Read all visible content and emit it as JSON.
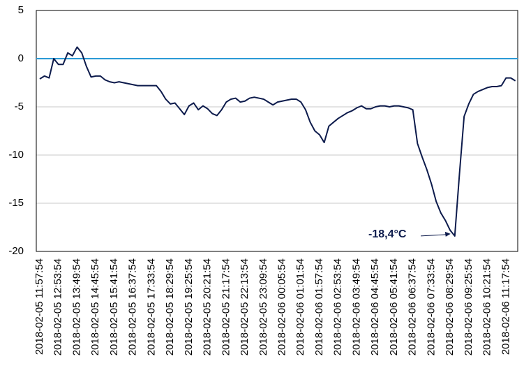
{
  "chart_data": {
    "type": "line",
    "categories": [
      "2018-02-05 11:57:54",
      null,
      null,
      null,
      "2018-02-05 12:53:54",
      null,
      null,
      null,
      "2018-02-05 13:49:54",
      null,
      null,
      null,
      "2018-02-05 14:45:54",
      null,
      null,
      null,
      "2018-02-05 15:41:54",
      null,
      null,
      null,
      "2018-02-05 16:37:54",
      null,
      null,
      null,
      "2018-02-05 17:33:54",
      null,
      null,
      null,
      "2018-02-05 18:29:54",
      null,
      null,
      null,
      "2018-02-05 19:25:54",
      null,
      null,
      null,
      "2018-02-05 20:21:54",
      null,
      null,
      null,
      "2018-02-05 21:17:54",
      null,
      null,
      null,
      "2018-02-05 22:13:54",
      null,
      null,
      null,
      "2018-02-05 23:09:54",
      null,
      null,
      null,
      "2018-02-06 00:05:54",
      null,
      null,
      null,
      "2018-02-06 01:01:54",
      null,
      null,
      null,
      "2018-02-06 01:57:54",
      null,
      null,
      null,
      "2018-02-06 02:53:54",
      null,
      null,
      null,
      "2018-02-06 03:49:54",
      null,
      null,
      null,
      "2018-02-06 04:45:54",
      null,
      null,
      null,
      "2018-02-06 05:41:54",
      null,
      null,
      null,
      "2018-02-06 06:37:54",
      null,
      null,
      null,
      "2018-02-06 07:33:54",
      null,
      null,
      null,
      "2018-02-06 08:29:54",
      null,
      null,
      null,
      "2018-02-06 09:25:54",
      null,
      null,
      null,
      "2018-02-06 10:21:54",
      null,
      null,
      null,
      "2018-02-06 11:17:54",
      null,
      null
    ],
    "series": [
      {
        "color": "#0d1b4c",
        "values": [
          -2.1,
          -1.8,
          -2.0,
          0.0,
          -0.6,
          -0.6,
          0.6,
          0.3,
          1.2,
          0.6,
          -0.8,
          -1.9,
          -1.8,
          -1.8,
          -2.2,
          -2.4,
          -2.5,
          -2.4,
          -2.5,
          -2.6,
          -2.7,
          -2.8,
          -2.8,
          -2.8,
          -2.8,
          -2.8,
          -3.4,
          -4.2,
          -4.7,
          -4.6,
          -5.2,
          -5.8,
          -4.9,
          -4.6,
          -5.3,
          -4.9,
          -5.2,
          -5.7,
          -5.9,
          -5.3,
          -4.5,
          -4.2,
          -4.1,
          -4.5,
          -4.4,
          -4.1,
          -4.0,
          -4.1,
          -4.2,
          -4.5,
          -4.8,
          -4.5,
          -4.4,
          -4.3,
          -4.2,
          -4.2,
          -4.5,
          -5.3,
          -6.6,
          -7.5,
          -7.9,
          -8.7,
          -7.0,
          -6.6,
          -6.2,
          -5.9,
          -5.6,
          -5.4,
          -5.1,
          -4.9,
          -5.2,
          -5.2,
          -5.0,
          -4.9,
          -4.9,
          -5.0,
          -4.9,
          -4.9,
          -5.0,
          -5.1,
          -5.3,
          -8.8,
          -10.2,
          -11.5,
          -13.0,
          -14.8,
          -16.0,
          -16.8,
          -17.8,
          -18.4,
          -12.0,
          -6.0,
          -4.7,
          -3.7,
          -3.4,
          -3.2,
          -3.0,
          -2.9,
          -2.9,
          -2.8,
          -2.0,
          -2.0,
          -2.3
        ]
      }
    ],
    "ylim": [
      -20,
      5
    ],
    "yticks": [
      -20,
      -15,
      -10,
      -5,
      0,
      5
    ],
    "grid": true,
    "reference_line": {
      "value": 0,
      "color": "#2b9ad6"
    },
    "annotation": {
      "text": "-18,4°C",
      "index": 89
    }
  }
}
